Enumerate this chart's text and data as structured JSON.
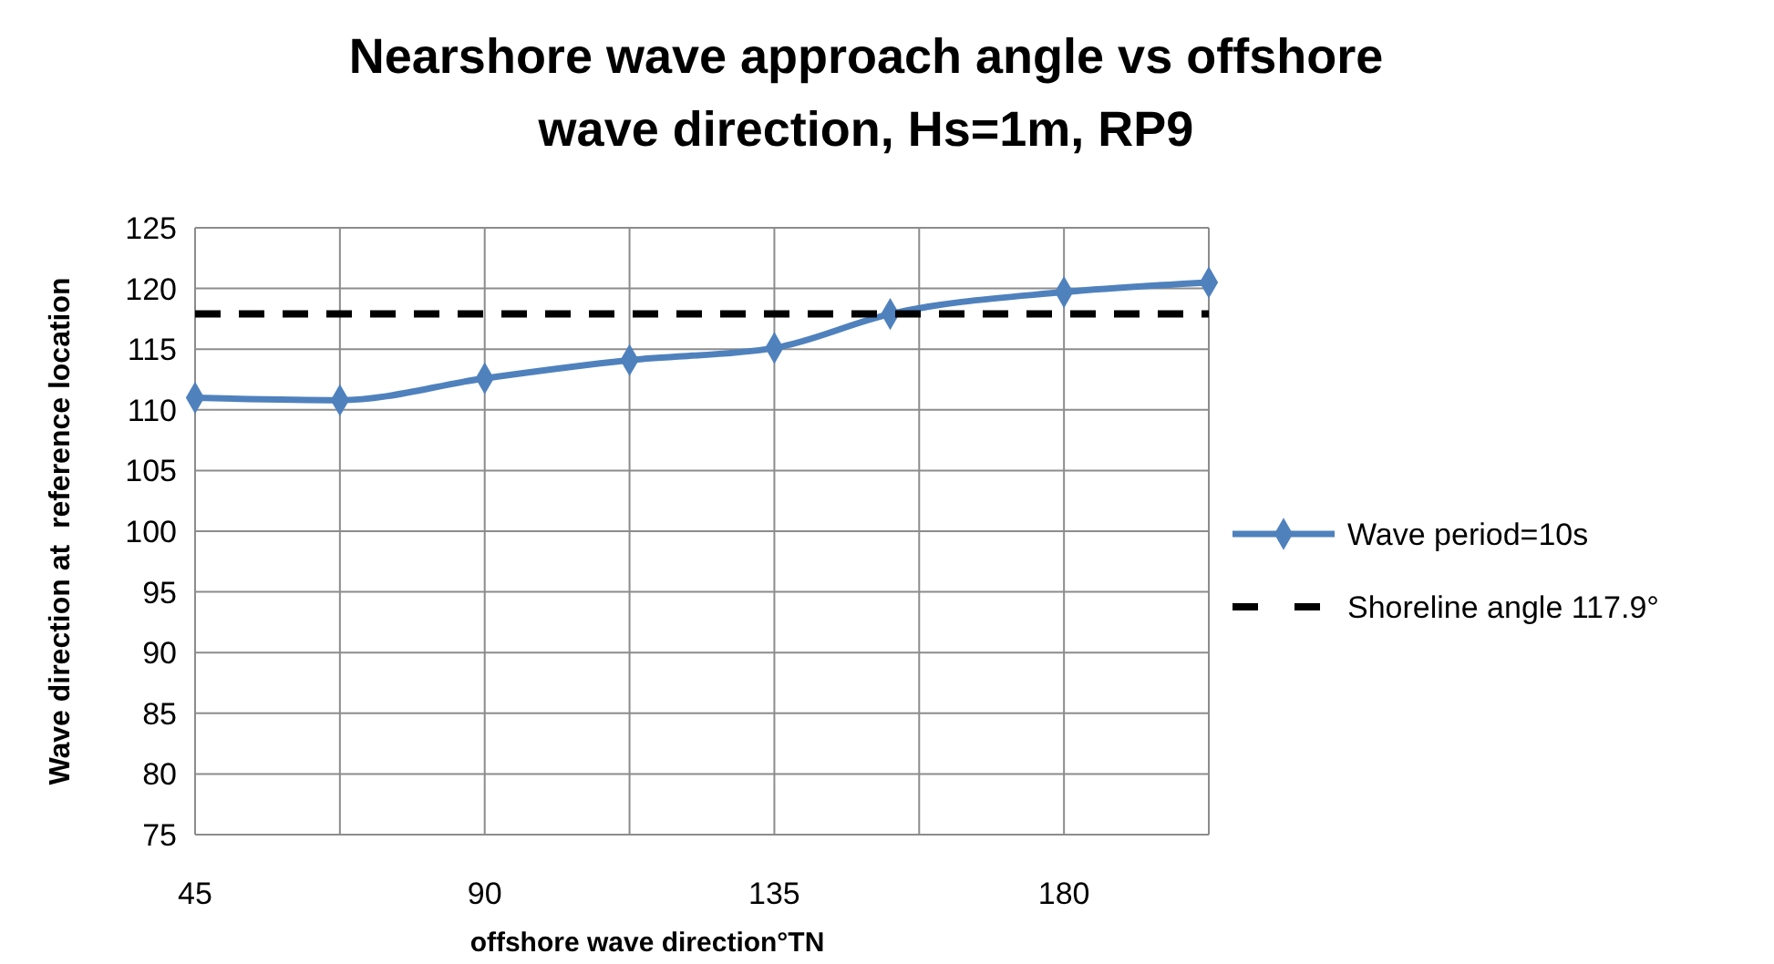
{
  "chart_data": {
    "type": "line",
    "title": "Nearshore wave approach angle vs offshore wave direction, Hs=1m, RP9",
    "xlabel": "offshore wave direction°TN",
    "ylabel": "Wave direction at  reference location",
    "xlim": [
      45,
      202.5
    ],
    "xticks": [
      45,
      {
        "value": 67.5,
        "label": null
      },
      90,
      {
        "value": 112.5,
        "label": null
      },
      135,
      {
        "value": 157.5,
        "label": null
      },
      180,
      {
        "value": 202.5,
        "label": null
      }
    ],
    "ylim": [
      75,
      125
    ],
    "yticks": [
      75,
      80,
      85,
      90,
      95,
      100,
      105,
      110,
      115,
      120,
      125
    ],
    "grid": true,
    "legend": "right",
    "series": [
      {
        "name": "Wave period=10s",
        "color": "#4f81bd",
        "x": [
          45,
          67.5,
          90,
          112.5,
          135,
          153,
          180,
          202.5
        ],
        "values": [
          111,
          110.8,
          112.6,
          114.1,
          115.1,
          117.9,
          119.7,
          120.5
        ],
        "marker": "diamond",
        "line_style": "solid"
      },
      {
        "name": "Shoreline angle 117.9°",
        "color": "#000000",
        "x": [
          45,
          202.5
        ],
        "values": [
          117.9,
          117.9
        ],
        "marker": "none",
        "line_style": "dashed"
      }
    ]
  }
}
